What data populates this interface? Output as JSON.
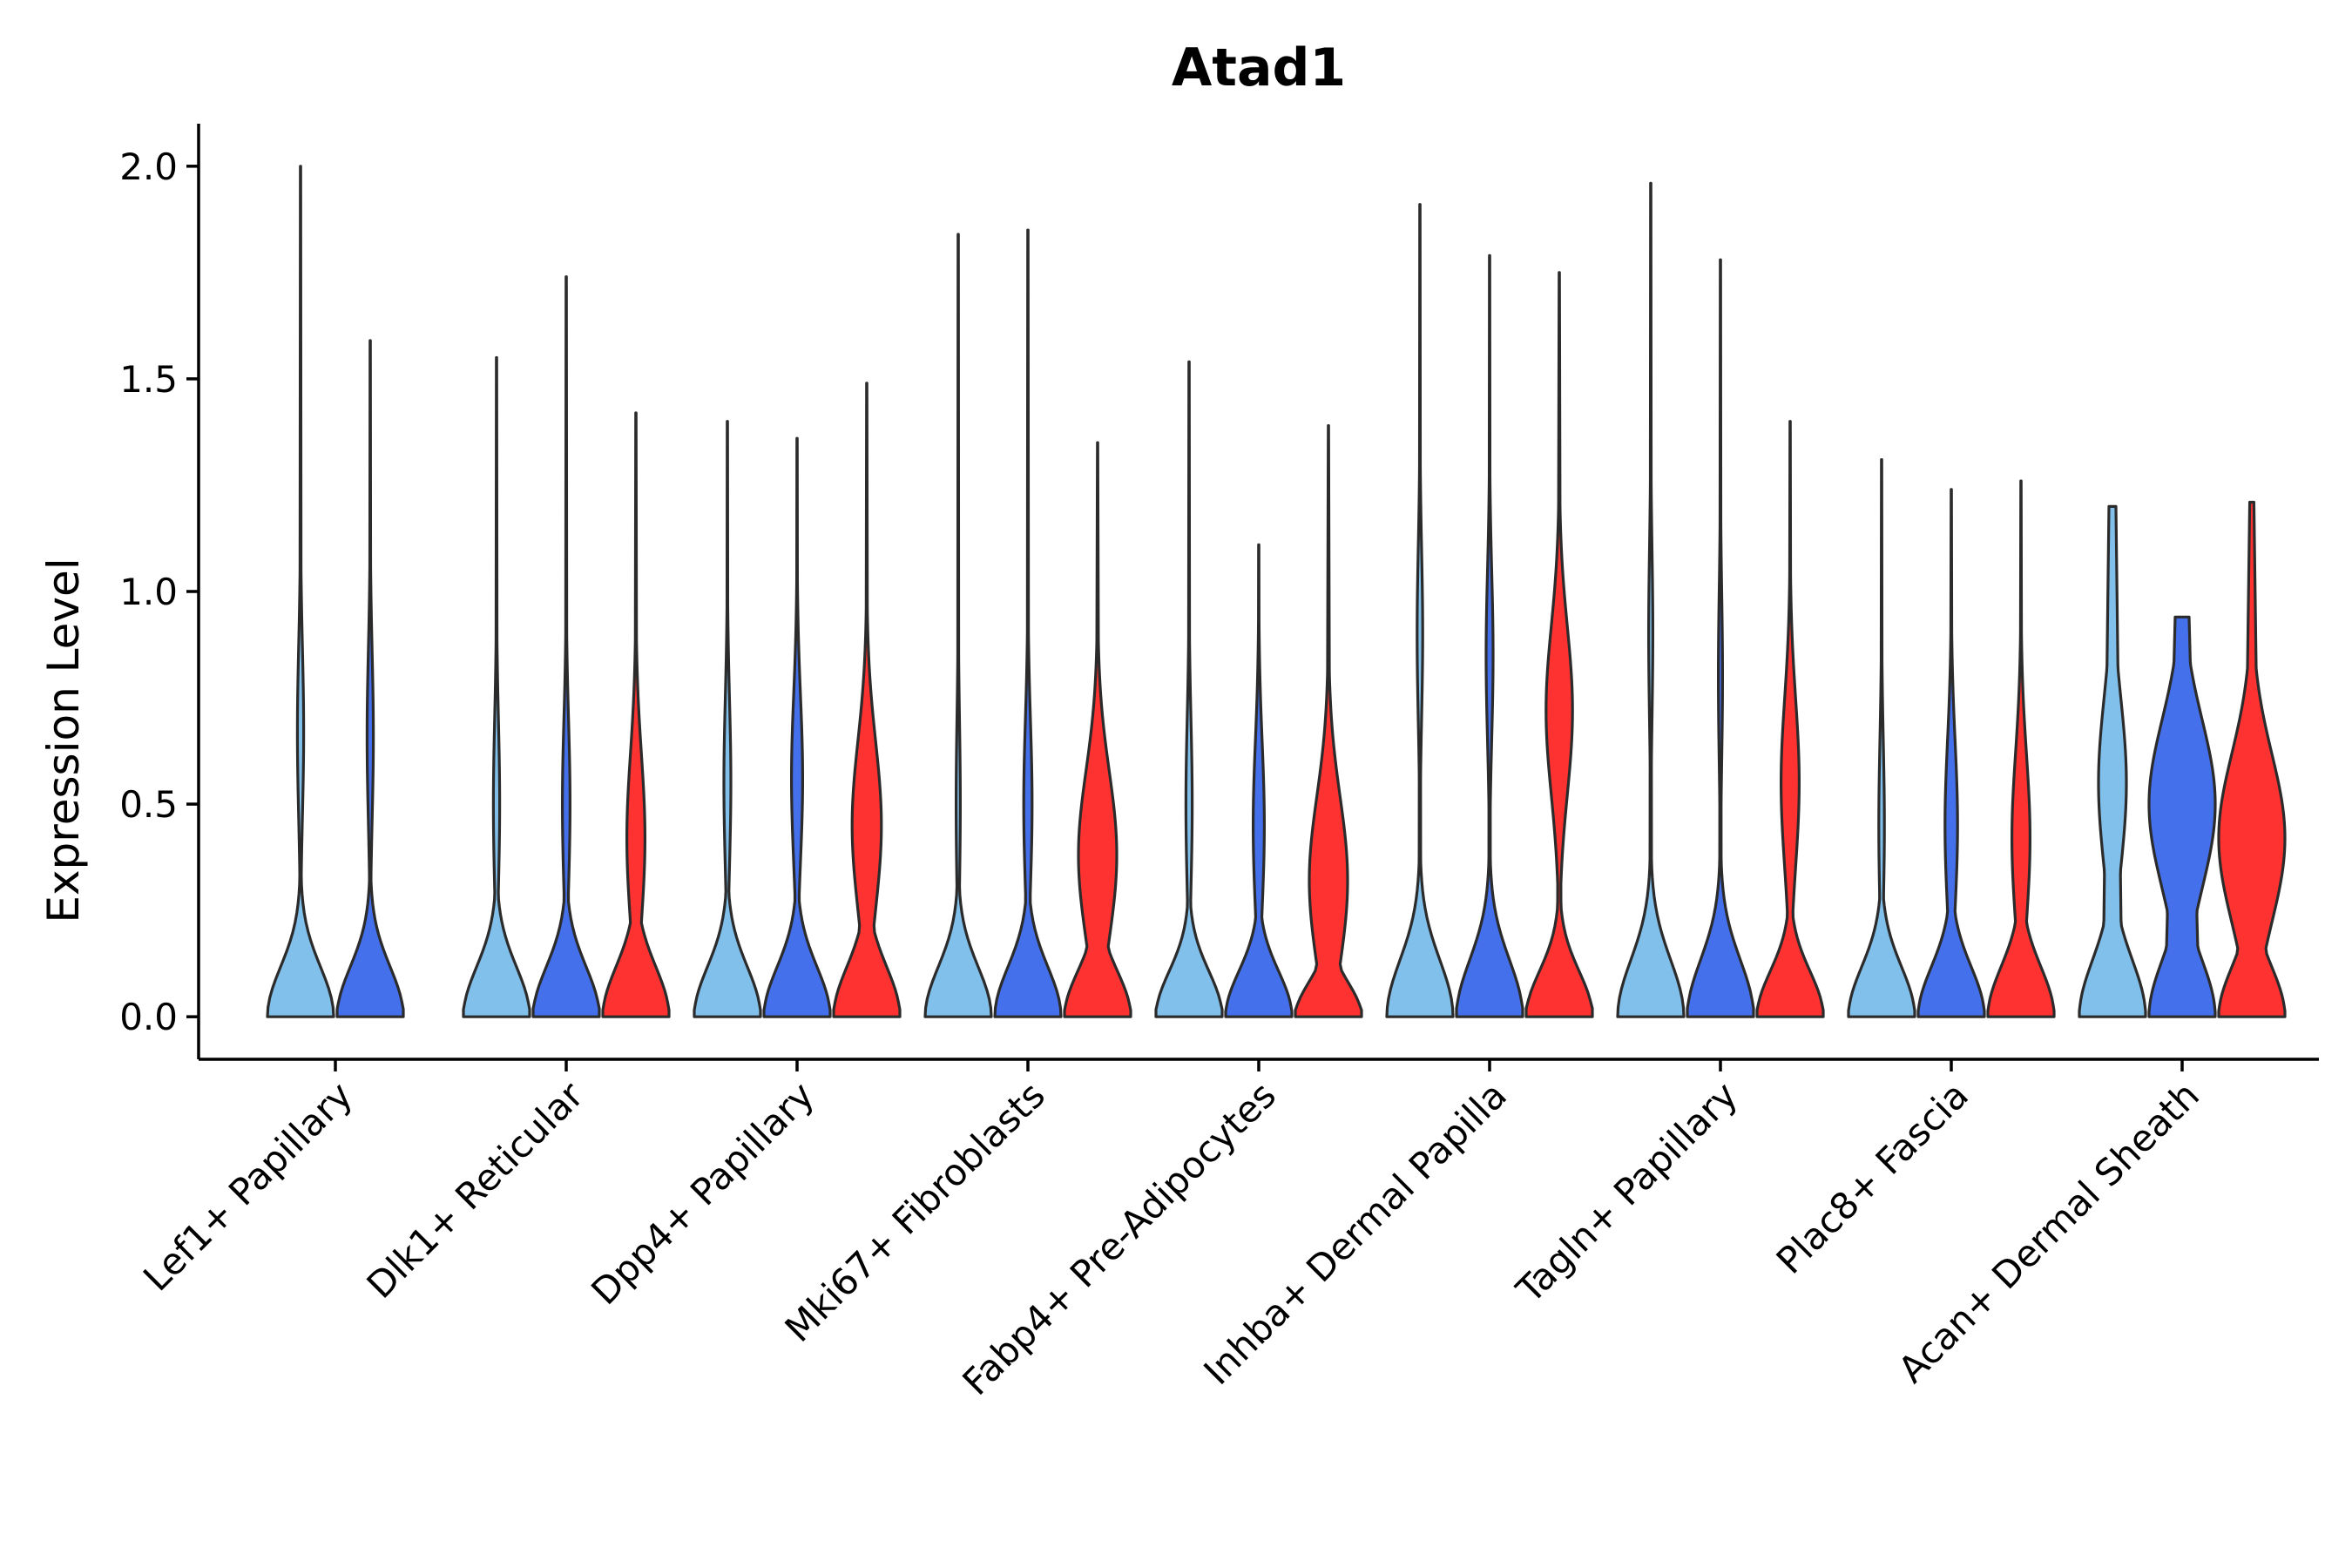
{
  "chart_data": {
    "type": "violin",
    "title": "Atad1",
    "xlabel": "",
    "ylabel": "Expression Level",
    "ylim": [
      -0.1,
      2.1
    ],
    "yticks": [
      "0.0",
      "0.5",
      "1.0",
      "1.5",
      "2.0"
    ],
    "ytick_values": [
      0.0,
      0.5,
      1.0,
      1.5,
      2.0
    ],
    "categories": [
      "Lef1+ Papillary",
      "Dlk1+ Reticular",
      "Dpp4+ Papillary",
      "Mki67+ Fibroblasts",
      "Fabp4+ Pre-Adipocytes",
      "Inhba+ Dermal Papilla",
      "Tagln+ Papillary",
      "Plac8+ Fascia",
      "Acan+ Dermal Sheath"
    ],
    "series_colors": [
      "#82c0ec",
      "#4570ec",
      "#ff3232"
    ],
    "groups": [
      {
        "category": "Lef1+ Papillary",
        "violins": [
          {
            "series": 0,
            "max": 2.0,
            "base_w": 0.95,
            "neck": 0.22,
            "mid_peak": 0.67,
            "mid_w": 0.09,
            "narrow_w": 0.02,
            "top_w": 0.005
          },
          {
            "series": 1,
            "max": 1.59,
            "base_w": 0.95,
            "neck": 0.22,
            "mid_peak": 0.66,
            "mid_w": 0.09,
            "narrow_w": 0.02,
            "top_w": 0.005
          }
        ]
      },
      {
        "category": "Dlk1+ Reticular",
        "violins": [
          {
            "series": 0,
            "max": 1.55,
            "base_w": 0.95,
            "neck": 0.22,
            "mid_peak": 0.5,
            "mid_w": 0.09,
            "narrow_w": 0.02,
            "top_w": 0.005
          },
          {
            "series": 1,
            "max": 1.74,
            "base_w": 0.95,
            "neck": 0.22,
            "mid_peak": 0.5,
            "mid_w": 0.11,
            "narrow_w": 0.02,
            "top_w": 0.005
          },
          {
            "series": 2,
            "max": 1.42,
            "base_w": 0.95,
            "neck": 0.22,
            "mid_peak": 0.42,
            "mid_w": 0.26,
            "narrow_w": 0.03,
            "top_w": 0.005
          }
        ]
      },
      {
        "category": "Dpp4+ Papillary",
        "violins": [
          {
            "series": 0,
            "max": 1.4,
            "base_w": 0.95,
            "neck": 0.22,
            "mid_peak": 0.55,
            "mid_w": 0.1,
            "narrow_w": 0.02,
            "top_w": 0.005
          },
          {
            "series": 1,
            "max": 1.36,
            "base_w": 0.95,
            "neck": 0.22,
            "mid_peak": 0.56,
            "mid_w": 0.16,
            "narrow_w": 0.02,
            "top_w": 0.005
          },
          {
            "series": 2,
            "max": 1.49,
            "base_w": 0.95,
            "neck": 0.22,
            "mid_peak": 0.45,
            "mid_w": 0.42,
            "narrow_w": 0.03,
            "top_w": 0.005
          }
        ]
      },
      {
        "category": "Mki67+ Fibroblasts",
        "violins": [
          {
            "series": 0,
            "max": 1.84,
            "base_w": 0.95,
            "neck": 0.22,
            "mid_peak": 0.5,
            "mid_w": 0.06,
            "narrow_w": 0.015,
            "top_w": 0.005
          },
          {
            "series": 1,
            "max": 1.85,
            "base_w": 0.95,
            "neck": 0.22,
            "mid_peak": 0.5,
            "mid_w": 0.12,
            "narrow_w": 0.02,
            "top_w": 0.005
          },
          {
            "series": 2,
            "max": 1.35,
            "base_w": 0.95,
            "neck": 0.2,
            "mid_peak": 0.38,
            "mid_w": 0.55,
            "narrow_w": 0.05,
            "top_w": 0.005
          }
        ]
      },
      {
        "category": "Fabp4+ Pre-Adipocytes",
        "violins": [
          {
            "series": 0,
            "max": 1.54,
            "base_w": 0.95,
            "neck": 0.2,
            "mid_peak": 0.5,
            "mid_w": 0.09,
            "narrow_w": 0.02,
            "top_w": 0.005
          },
          {
            "series": 1,
            "max": 1.11,
            "base_w": 0.95,
            "neck": 0.2,
            "mid_peak": 0.45,
            "mid_w": 0.16,
            "narrow_w": 0.02,
            "top_w": 0.005
          },
          {
            "series": 2,
            "max": 1.39,
            "base_w": 0.95,
            "neck": 0.15,
            "mid_peak": 0.32,
            "mid_w": 0.55,
            "narrow_w": 0.05,
            "top_w": 0.005
          }
        ]
      },
      {
        "category": "Inhba+ Dermal Papilla",
        "violins": [
          {
            "series": 0,
            "max": 1.91,
            "base_w": 0.95,
            "neck": 0.25,
            "mid_peak": 0.9,
            "mid_w": 0.08,
            "narrow_w": 0.02,
            "top_w": 0.005
          },
          {
            "series": 1,
            "max": 1.79,
            "base_w": 0.95,
            "neck": 0.25,
            "mid_peak": 0.85,
            "mid_w": 0.1,
            "narrow_w": 0.02,
            "top_w": 0.005
          },
          {
            "series": 2,
            "max": 1.75,
            "base_w": 0.95,
            "neck": 0.2,
            "mid_peak": 0.72,
            "mid_w": 0.38,
            "narrow_w": 0.05,
            "top_w": 0.005
          }
        ]
      },
      {
        "category": "Tagln+ Papillary",
        "violins": [
          {
            "series": 0,
            "max": 1.96,
            "base_w": 0.95,
            "neck": 0.25,
            "mid_peak": 0.9,
            "mid_w": 0.06,
            "narrow_w": 0.02,
            "top_w": 0.005
          },
          {
            "series": 1,
            "max": 1.78,
            "base_w": 0.95,
            "neck": 0.25,
            "mid_peak": 0.8,
            "mid_w": 0.06,
            "narrow_w": 0.02,
            "top_w": 0.005
          },
          {
            "series": 2,
            "max": 1.4,
            "base_w": 0.95,
            "neck": 0.2,
            "mid_peak": 0.55,
            "mid_w": 0.26,
            "narrow_w": 0.03,
            "top_w": 0.005
          }
        ]
      },
      {
        "category": "Plac8+ Fascia",
        "violins": [
          {
            "series": 0,
            "max": 1.31,
            "base_w": 0.95,
            "neck": 0.22,
            "mid_peak": 0.45,
            "mid_w": 0.08,
            "narrow_w": 0.02,
            "top_w": 0.005
          },
          {
            "series": 1,
            "max": 1.24,
            "base_w": 0.95,
            "neck": 0.22,
            "mid_peak": 0.45,
            "mid_w": 0.18,
            "narrow_w": 0.03,
            "top_w": 0.005
          },
          {
            "series": 2,
            "max": 1.26,
            "base_w": 0.95,
            "neck": 0.22,
            "mid_peak": 0.42,
            "mid_w": 0.26,
            "narrow_w": 0.03,
            "top_w": 0.005
          }
        ]
      },
      {
        "category": "Acan+ Dermal Sheath",
        "violins": [
          {
            "series": 0,
            "max": 1.2,
            "base_w": 0.95,
            "neck": 0.25,
            "mid_peak": 0.55,
            "mid_w": 0.4,
            "narrow_w": 0.18,
            "top_w": 0.1
          },
          {
            "series": 1,
            "max": 0.94,
            "base_w": 0.95,
            "neck": 0.25,
            "mid_peak": 0.5,
            "mid_w": 0.95,
            "narrow_w": 0.3,
            "top_w": 0.2
          },
          {
            "series": 2,
            "max": 1.21,
            "base_w": 0.95,
            "neck": 0.22,
            "mid_peak": 0.42,
            "mid_w": 0.95,
            "narrow_w": 0.2,
            "top_w": 0.06
          }
        ]
      }
    ]
  }
}
